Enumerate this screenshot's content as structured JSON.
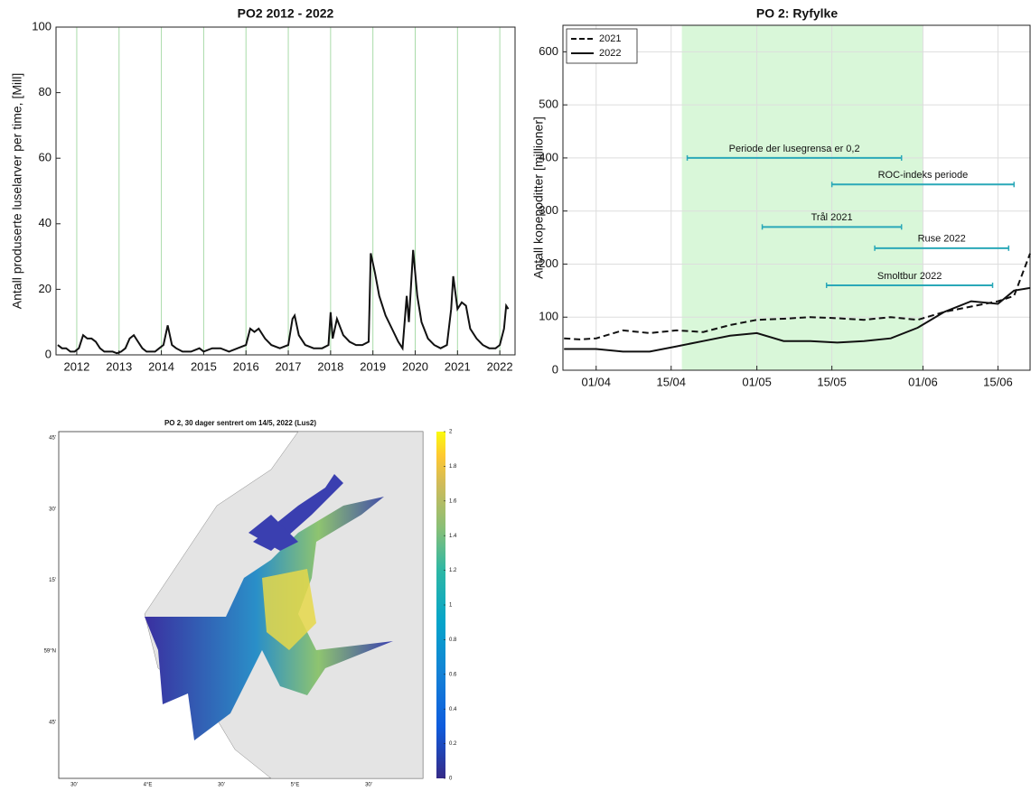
{
  "chart_data": [
    {
      "type": "line",
      "title": "PO2 2012 - 2022",
      "ylabel": "Antall produserte luselarver per time, [Mill]",
      "xlim": [
        2011.51,
        2022.36
      ],
      "xticks": [
        2012,
        2013,
        2014,
        2015,
        2016,
        2017,
        2018,
        2019,
        2020,
        2021,
        2022
      ],
      "ylim": [
        0,
        100
      ],
      "yticks": [
        0,
        20,
        40,
        60,
        80,
        100
      ],
      "grid": "x",
      "grid_color": "#a9dba9",
      "series": [
        {
          "color": "#111111",
          "linestyle": "solid",
          "x": [
            2011.55,
            2011.65,
            2011.75,
            2011.85,
            2011.95,
            2012.05,
            2012.15,
            2012.25,
            2012.35,
            2012.45,
            2012.55,
            2012.65,
            2012.75,
            2012.85,
            2012.95,
            2013.05,
            2013.15,
            2013.25,
            2013.35,
            2013.45,
            2013.55,
            2013.65,
            2013.75,
            2013.85,
            2013.95,
            2014.05,
            2014.15,
            2014.25,
            2014.35,
            2014.5,
            2014.7,
            2014.9,
            2015.0,
            2015.2,
            2015.4,
            2015.6,
            2015.8,
            2016.0,
            2016.1,
            2016.2,
            2016.3,
            2016.45,
            2016.6,
            2016.8,
            2017.0,
            2017.1,
            2017.15,
            2017.25,
            2017.4,
            2017.6,
            2017.8,
            2017.95,
            2018.0,
            2018.05,
            2018.15,
            2018.3,
            2018.45,
            2018.6,
            2018.75,
            2018.9,
            2018.95,
            2019.05,
            2019.15,
            2019.3,
            2019.45,
            2019.6,
            2019.7,
            2019.8,
            2019.85,
            2019.95,
            2020.05,
            2020.15,
            2020.3,
            2020.45,
            2020.6,
            2020.75,
            2020.85,
            2020.9,
            2021.0,
            2021.1,
            2021.2,
            2021.3,
            2021.45,
            2021.6,
            2021.75,
            2021.9,
            2022.0,
            2022.1,
            2022.15,
            2022.2
          ],
          "values": [
            3,
            2,
            2,
            1,
            1,
            2,
            6,
            5,
            5,
            4,
            2,
            1,
            1,
            1,
            0.5,
            1,
            2,
            5,
            6,
            4,
            2,
            1,
            1,
            1,
            2,
            3,
            9,
            3,
            2,
            1,
            1,
            2,
            1,
            2,
            2,
            1,
            2,
            3,
            8,
            7,
            8,
            5,
            3,
            2,
            3,
            11,
            12,
            6,
            3,
            2,
            2,
            3,
            13,
            5,
            11,
            6,
            4,
            3,
            3,
            4,
            31,
            25,
            18,
            12,
            8,
            4,
            2,
            18,
            10,
            32,
            18,
            10,
            5,
            3,
            2,
            3,
            14,
            24,
            14,
            16,
            15,
            8,
            5,
            3,
            2,
            2,
            3,
            8,
            15,
            14
          ]
        }
      ]
    },
    {
      "type": "line",
      "title": "PO 2: Ryfylke",
      "ylabel": "Antall kopepoditter [millioner]",
      "xlim": [
        -6.2,
        81
      ],
      "xticks": [
        {
          "value": 0,
          "label": "01/04"
        },
        {
          "value": 14,
          "label": "15/04"
        },
        {
          "value": 30,
          "label": "01/05"
        },
        {
          "value": 44,
          "label": "15/05"
        },
        {
          "value": 61,
          "label": "01/06"
        },
        {
          "value": 75,
          "label": "15/06"
        }
      ],
      "ylim": [
        0,
        650
      ],
      "yticks": [
        0,
        100,
        200,
        300,
        400,
        500,
        600
      ],
      "grid": "both",
      "grid_color": "#dddddd",
      "shade": [
        16,
        61
      ],
      "shade_color": "#d9f7d9",
      "legend": "upper left",
      "series": [
        {
          "name": "2021",
          "color": "#111111",
          "linestyle": "dashed",
          "x": [
            -6,
            -3,
            0,
            5,
            10,
            15,
            20,
            25,
            30,
            35,
            40,
            45,
            50,
            55,
            60,
            65,
            70,
            75,
            78,
            81
          ],
          "values": [
            60,
            58,
            60,
            75,
            70,
            75,
            72,
            85,
            95,
            97,
            100,
            98,
            95,
            100,
            95,
            110,
            120,
            130,
            140,
            220
          ]
        },
        {
          "name": "2022",
          "color": "#111111",
          "linestyle": "solid",
          "x": [
            -6,
            0,
            5,
            10,
            15,
            20,
            25,
            30,
            35,
            40,
            45,
            50,
            55,
            60,
            65,
            70,
            75,
            78,
            81
          ],
          "values": [
            40,
            40,
            35,
            35,
            45,
            55,
            65,
            70,
            55,
            55,
            52,
            55,
            60,
            80,
            110,
            130,
            125,
            150,
            155
          ]
        }
      ],
      "interval_color": "#2aa8b8",
      "intervals": [
        {
          "label": "Periode der lusegrensa er 0,2",
          "start": 17,
          "end": 57,
          "y": 400
        },
        {
          "label": "ROC-indeks periode",
          "start": 44,
          "end": 78,
          "y": 350
        },
        {
          "label": "Trål 2021",
          "start": 31,
          "end": 57,
          "y": 270
        },
        {
          "label": "Ruse 2022",
          "start": 52,
          "end": 77,
          "y": 230
        },
        {
          "label": "Smoltbur 2022",
          "start": 43,
          "end": 74,
          "y": 160
        }
      ]
    },
    {
      "type": "heatmap",
      "title": "PO 2, 30 dager sentrert om 14/5, 2022 (Lus2)",
      "lat_labels": [
        "45'",
        "30'",
        "15'",
        "59°N",
        "45'"
      ],
      "lon_labels": [
        "30'",
        "4°E",
        "30'",
        "5°E",
        "30'"
      ],
      "clim": [
        0,
        2
      ],
      "cticks": [
        0,
        0.2,
        0.4,
        0.6,
        0.8,
        1,
        1.2,
        1.4,
        1.6,
        1.8,
        2
      ]
    }
  ]
}
